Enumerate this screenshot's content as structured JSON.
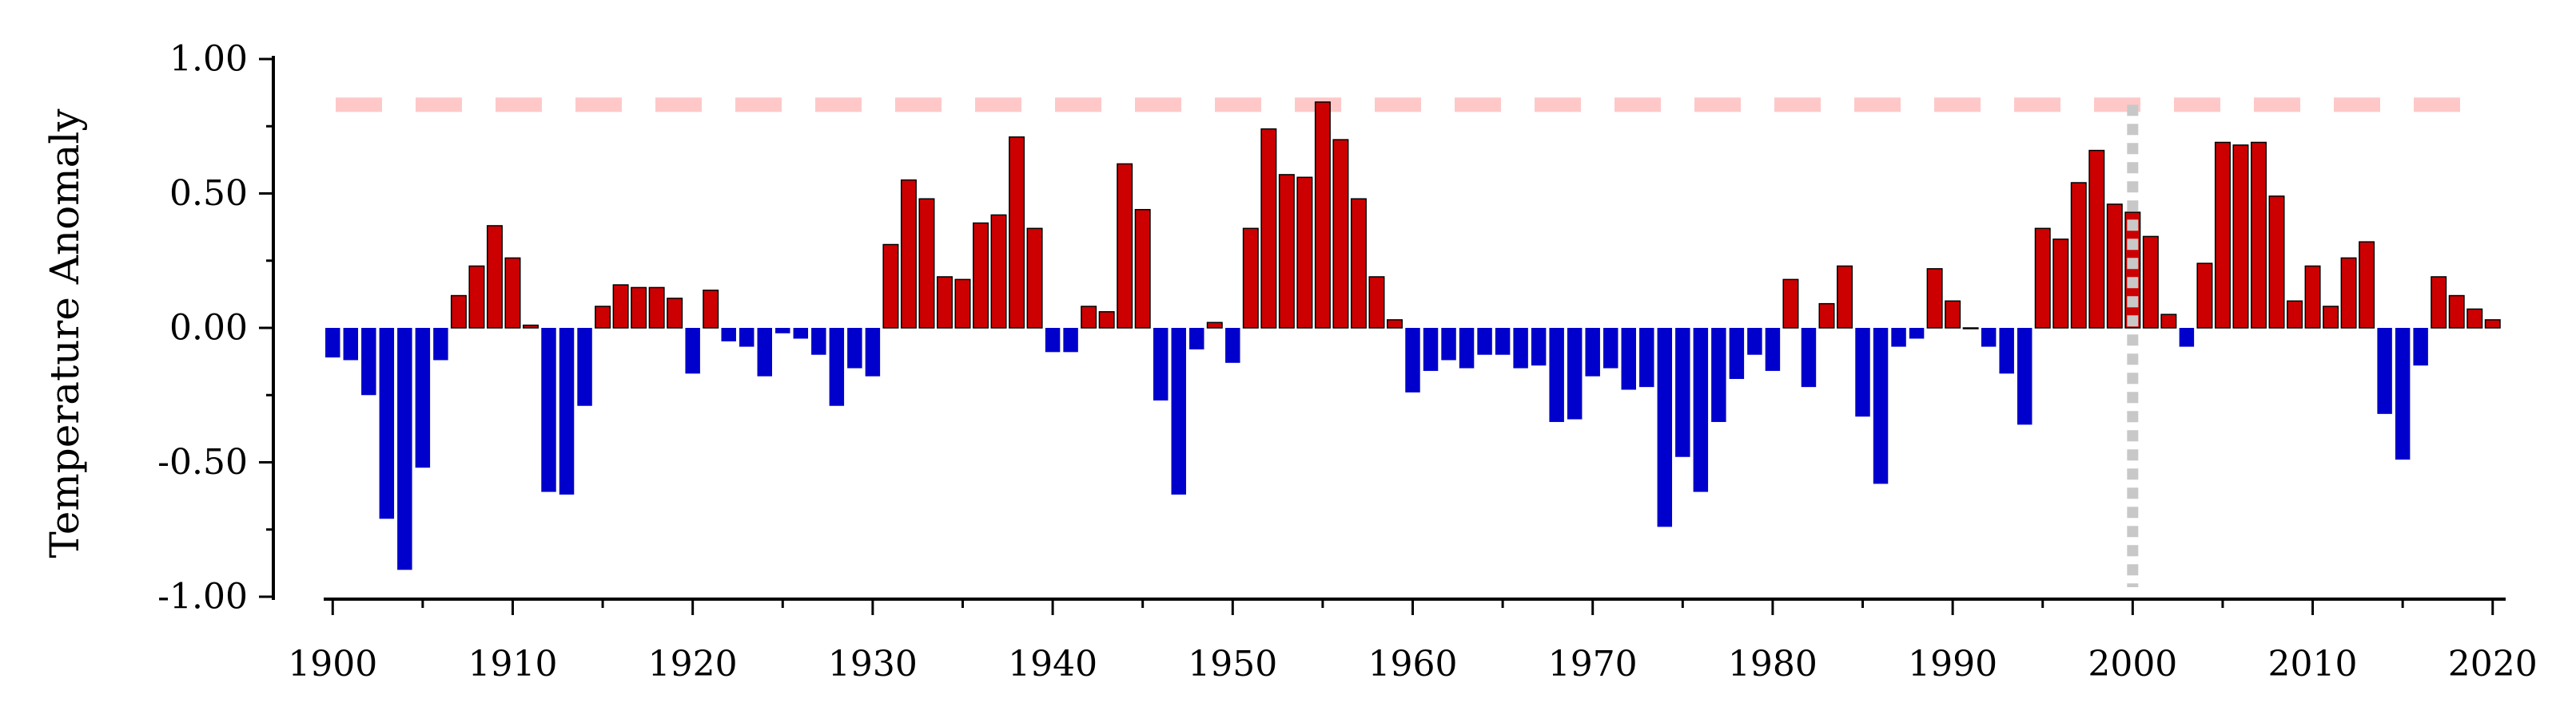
{
  "chart_data": {
    "type": "bar",
    "ylabel": "Temperature Anomaly",
    "xlabel": "",
    "ylim": [
      -1.0,
      1.0
    ],
    "xlim": [
      1899.5,
      2020.5
    ],
    "y_ticks": [
      1.0,
      0.5,
      0.0,
      -0.5,
      -1.0
    ],
    "y_tick_labels": [
      "1.00",
      "0.50",
      "0.00",
      "-0.50",
      "-1.00"
    ],
    "x_ticks": [
      1900,
      1910,
      1920,
      1930,
      1940,
      1950,
      1960,
      1970,
      1980,
      1990,
      2000,
      2010,
      2020
    ],
    "x_tick_labels": [
      "1900",
      "1910",
      "1920",
      "1930",
      "1940",
      "1950",
      "1960",
      "1970",
      "1980",
      "1990",
      "2000",
      "2010",
      "2020"
    ],
    "grid": false,
    "colors": {
      "positive": "#cc0000",
      "negative": "#0000cc",
      "reference_line": "#ffc8c8",
      "marker_line": "#c8c8c8"
    },
    "reference_line_y": 0.83,
    "marker_line_x": 2000,
    "series": [
      {
        "x": [
          1900,
          1901,
          1902,
          1903,
          1904,
          1905,
          1906,
          1907,
          1908,
          1909,
          1910,
          1911,
          1912,
          1913,
          1914,
          1915,
          1916,
          1917,
          1918,
          1919,
          1920,
          1921,
          1922,
          1923,
          1924,
          1925,
          1926,
          1927,
          1928,
          1929,
          1930,
          1931,
          1932,
          1933,
          1934,
          1935,
          1936,
          1937,
          1938,
          1939,
          1940,
          1941,
          1942,
          1943,
          1944,
          1945,
          1946,
          1947,
          1948,
          1949,
          1950,
          1951,
          1952,
          1953,
          1954,
          1955,
          1956,
          1957,
          1958,
          1959,
          1960,
          1961,
          1962,
          1963,
          1964,
          1965,
          1966,
          1967,
          1968,
          1969,
          1970,
          1971,
          1972,
          1973,
          1974,
          1975,
          1976,
          1977,
          1978,
          1979,
          1980,
          1981,
          1982,
          1983,
          1984,
          1985,
          1986,
          1987,
          1988,
          1989,
          1990,
          1991,
          1992,
          1993,
          1994,
          1995,
          1996,
          1997,
          1998,
          1999,
          2000,
          2001,
          2002,
          2003,
          2004,
          2005,
          2006,
          2007,
          2008,
          2009,
          2010,
          2011,
          2012,
          2013,
          2014,
          2015,
          2016,
          2017,
          2018,
          2019,
          2020
        ],
        "values": [
          -0.11,
          -0.12,
          -0.25,
          -0.71,
          -0.9,
          -0.52,
          -0.12,
          0.12,
          0.23,
          0.38,
          0.26,
          0.01,
          -0.61,
          -0.62,
          -0.29,
          0.08,
          0.16,
          0.15,
          0.15,
          0.11,
          -0.17,
          0.14,
          -0.05,
          -0.07,
          -0.18,
          -0.02,
          -0.04,
          -0.1,
          -0.29,
          -0.15,
          -0.18,
          0.31,
          0.55,
          0.48,
          0.19,
          0.18,
          0.39,
          0.42,
          0.71,
          0.37,
          -0.09,
          -0.09,
          0.08,
          0.06,
          0.61,
          0.44,
          -0.27,
          -0.62,
          -0.08,
          0.02,
          -0.13,
          0.37,
          0.74,
          0.57,
          0.56,
          0.84,
          0.7,
          0.48,
          0.19,
          0.03,
          -0.24,
          -0.16,
          -0.12,
          -0.15,
          -0.1,
          -0.1,
          -0.15,
          -0.14,
          -0.35,
          -0.34,
          -0.18,
          -0.15,
          -0.23,
          -0.22,
          -0.74,
          -0.48,
          -0.61,
          -0.35,
          -0.19,
          -0.1,
          -0.16,
          0.18,
          -0.22,
          0.09,
          0.23,
          -0.33,
          -0.58,
          -0.07,
          -0.04,
          0.22,
          0.1,
          0.0,
          -0.07,
          -0.17,
          -0.36,
          0.37,
          0.33,
          0.54,
          0.66,
          0.46,
          0.43,
          0.34,
          0.05,
          -0.07,
          0.24,
          0.69,
          0.68,
          0.69,
          0.49,
          0.1,
          0.23,
          0.08,
          0.26,
          0.32,
          -0.32,
          -0.49,
          -0.14,
          0.19,
          0.12,
          0.07,
          0.03
        ]
      }
    ]
  }
}
